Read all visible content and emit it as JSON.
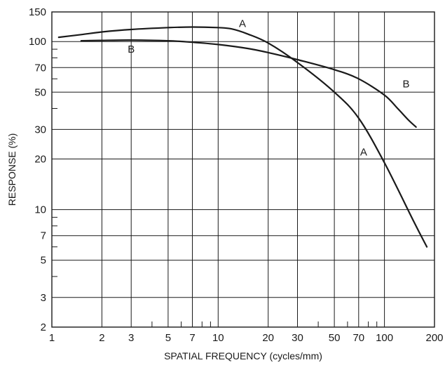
{
  "chart_data": {
    "type": "line",
    "title": "",
    "xlabel": "SPATIAL FREQUENCY (cycles/mm)",
    "ylabel": "RESPONSE (%)",
    "x_scale": "log",
    "y_scale": "log",
    "xlim": [
      1,
      200
    ],
    "ylim": [
      2,
      150
    ],
    "x_ticks": [
      1,
      2,
      3,
      5,
      7,
      10,
      20,
      30,
      50,
      70,
      100,
      200
    ],
    "y_ticks": [
      2,
      3,
      5,
      7,
      10,
      20,
      30,
      50,
      70,
      100,
      150
    ],
    "grid": true,
    "series": [
      {
        "name": "A",
        "points": [
          [
            1.1,
            106
          ],
          [
            1.5,
            110
          ],
          [
            2,
            114
          ],
          [
            3,
            118
          ],
          [
            5,
            121
          ],
          [
            7,
            122
          ],
          [
            10,
            121
          ],
          [
            12,
            119
          ],
          [
            15,
            111
          ],
          [
            20,
            98
          ],
          [
            30,
            75
          ],
          [
            50,
            50
          ],
          [
            70,
            35
          ],
          [
            100,
            19
          ],
          [
            150,
            8.5
          ],
          [
            180,
            6
          ]
        ]
      },
      {
        "name": "B",
        "points": [
          [
            1.5,
            101
          ],
          [
            2,
            101.5
          ],
          [
            3,
            102
          ],
          [
            5,
            101
          ],
          [
            7,
            99
          ],
          [
            10,
            96
          ],
          [
            15,
            91
          ],
          [
            20,
            86
          ],
          [
            30,
            78
          ],
          [
            50,
            68
          ],
          [
            70,
            60
          ],
          [
            100,
            48
          ],
          [
            120,
            40
          ],
          [
            140,
            34
          ],
          [
            155,
            31
          ]
        ]
      }
    ],
    "annotations": [
      {
        "text": "A",
        "x": 14,
        "y": 128
      },
      {
        "text": "B",
        "x": 3,
        "y": 90
      },
      {
        "text": "B",
        "x": 135,
        "y": 56
      },
      {
        "text": "A",
        "x": 75,
        "y": 22
      }
    ]
  }
}
